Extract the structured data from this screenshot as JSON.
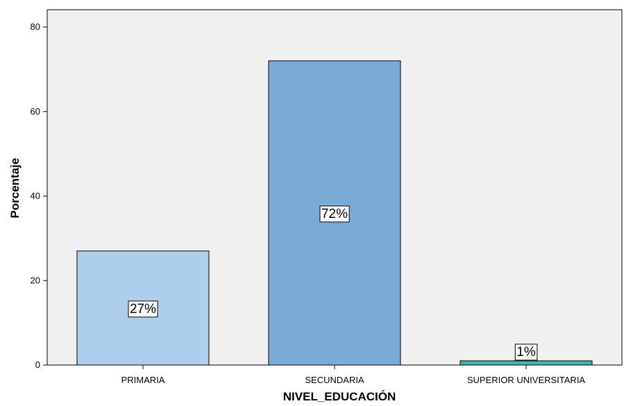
{
  "chart_data": {
    "type": "bar",
    "title": "",
    "xlabel": "NIVEL_EDUCACIÓN",
    "ylabel": "Porcentaje",
    "categories": [
      "PRIMARIA",
      "SECUNDARIA",
      "SUPERIOR UNIVERSITARIA"
    ],
    "values": [
      27,
      72,
      1
    ],
    "data_labels": [
      "27%",
      "72%",
      "1%"
    ],
    "ylim": [
      0,
      80
    ],
    "yticks": [
      0,
      20,
      40,
      60,
      80
    ],
    "grid": false,
    "legend": "none",
    "colors": {
      "background": "#f0f0f0",
      "bars": [
        "#aecfec",
        "#7aaad6",
        "#3fb6ae"
      ],
      "label_box": "#ffffff"
    }
  }
}
